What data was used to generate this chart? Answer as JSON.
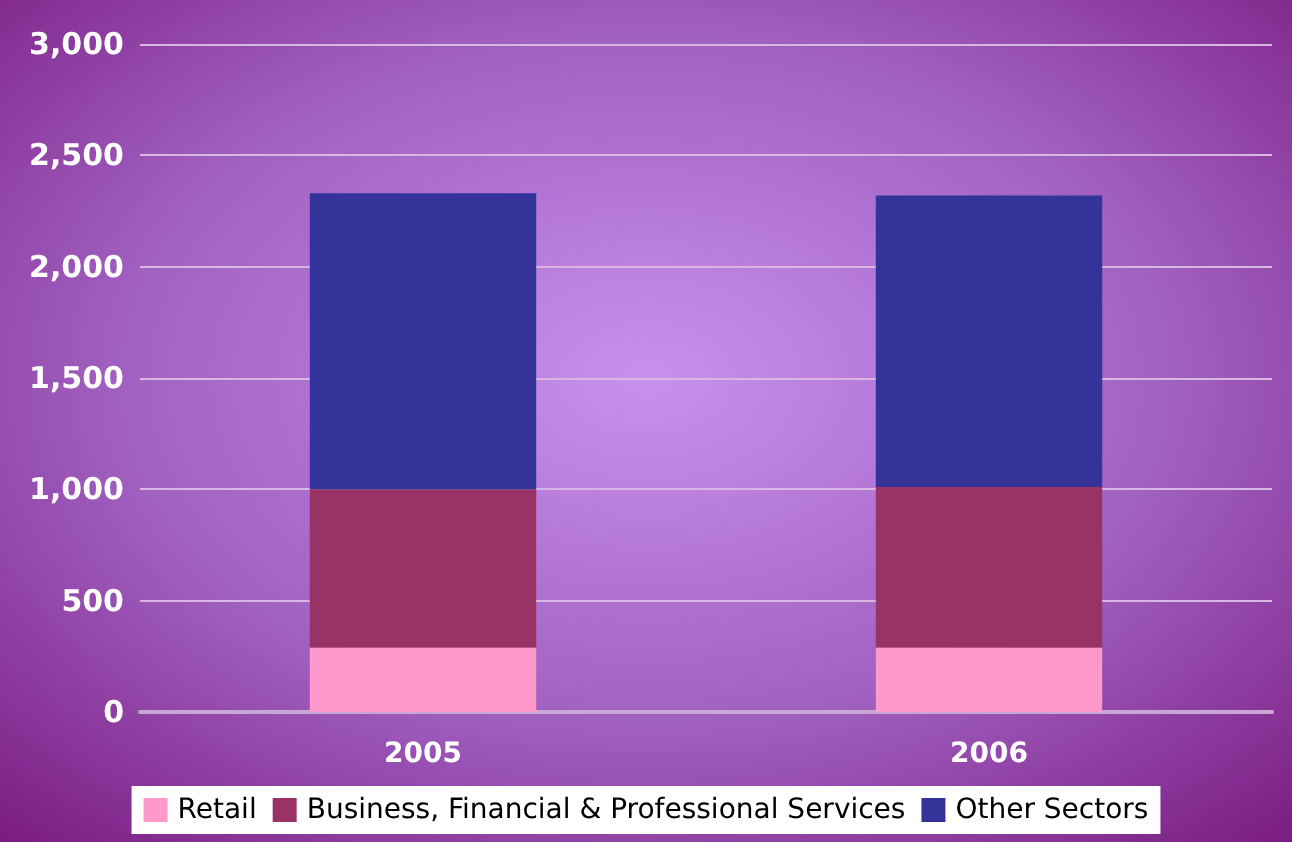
{
  "chart_data": {
    "type": "bar",
    "stacked": true,
    "categories": [
      "2005",
      "2006"
    ],
    "series": [
      {
        "name": "Retail",
        "color": "#ff99cc",
        "values": [
          290,
          290
        ]
      },
      {
        "name": "Business, Financial & Professional Services",
        "color": "#993366",
        "values": [
          710,
          720
        ]
      },
      {
        "name": "Other Sectors",
        "color": "#333399",
        "values": [
          1330,
          1310
        ]
      }
    ],
    "ylim": [
      0,
      3000
    ],
    "yticks": [
      {
        "value": 0,
        "label": "0"
      },
      {
        "value": 500,
        "label": "500"
      },
      {
        "value": 1000,
        "label": "1,000"
      },
      {
        "value": 1500,
        "label": "1,500"
      },
      {
        "value": 2000,
        "label": "2,000"
      },
      {
        "value": 2500,
        "label": "2,500"
      },
      {
        "value": 3000,
        "label": "3,000"
      }
    ],
    "grid": "y",
    "legend": "bottom"
  }
}
